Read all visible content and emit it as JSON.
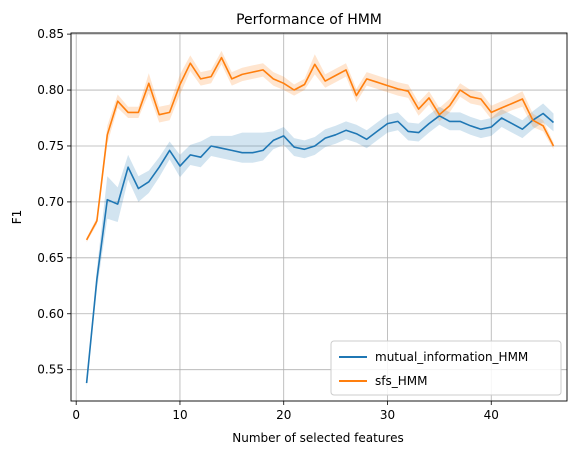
{
  "chart_data": {
    "type": "line",
    "title": "Performance of HMM",
    "xlabel": "Number of selected features",
    "ylabel": "F1",
    "xlim": [
      -0.5,
      47.3
    ],
    "ylim": [
      0.522,
      0.851
    ],
    "xticks": [
      0,
      10,
      20,
      30,
      40
    ],
    "yticks": [
      0.55,
      0.6,
      0.65,
      0.7,
      0.75,
      0.8,
      0.85
    ],
    "ytick_labels": [
      "0.55",
      "0.60",
      "0.65",
      "0.70",
      "0.75",
      "0.80",
      "0.85"
    ],
    "grid": true,
    "legend_position": "lower-right",
    "x": [
      1,
      2,
      3,
      4,
      5,
      6,
      7,
      8,
      9,
      10,
      11,
      12,
      13,
      14,
      15,
      16,
      17,
      18,
      19,
      20,
      21,
      22,
      23,
      24,
      25,
      26,
      27,
      28,
      29,
      30,
      31,
      32,
      33,
      34,
      35,
      36,
      37,
      38,
      39,
      40,
      41,
      42,
      43,
      44,
      45,
      46
    ],
    "series": [
      {
        "name": "mutual_information_HMM",
        "color": "#1f77b4",
        "values": [
          0.538,
          0.631,
          0.702,
          0.698,
          0.731,
          0.712,
          0.718,
          0.731,
          0.746,
          0.732,
          0.742,
          0.74,
          0.75,
          0.748,
          0.746,
          0.744,
          0.744,
          0.746,
          0.755,
          0.759,
          0.749,
          0.747,
          0.75,
          0.757,
          0.76,
          0.764,
          0.761,
          0.756,
          0.763,
          0.77,
          0.772,
          0.763,
          0.762,
          0.77,
          0.777,
          0.772,
          0.772,
          0.768,
          0.765,
          0.767,
          0.775,
          0.77,
          0.765,
          0.773,
          0.779,
          0.771
        ],
        "ci_lower": [
          0.535,
          0.622,
          0.685,
          0.682,
          0.72,
          0.7,
          0.708,
          0.722,
          0.738,
          0.722,
          0.733,
          0.731,
          0.741,
          0.739,
          0.737,
          0.735,
          0.735,
          0.737,
          0.747,
          0.751,
          0.741,
          0.739,
          0.742,
          0.749,
          0.752,
          0.756,
          0.753,
          0.748,
          0.755,
          0.762,
          0.764,
          0.755,
          0.754,
          0.762,
          0.769,
          0.764,
          0.764,
          0.76,
          0.757,
          0.759,
          0.767,
          0.762,
          0.757,
          0.765,
          0.771,
          0.763
        ],
        "ci_upper": [
          0.541,
          0.64,
          0.723,
          0.713,
          0.742,
          0.723,
          0.728,
          0.74,
          0.754,
          0.742,
          0.751,
          0.754,
          0.759,
          0.759,
          0.759,
          0.762,
          0.762,
          0.762,
          0.763,
          0.767,
          0.757,
          0.755,
          0.758,
          0.765,
          0.768,
          0.772,
          0.769,
          0.764,
          0.771,
          0.778,
          0.78,
          0.771,
          0.77,
          0.778,
          0.785,
          0.78,
          0.78,
          0.776,
          0.773,
          0.775,
          0.783,
          0.778,
          0.773,
          0.781,
          0.788,
          0.779
        ]
      },
      {
        "name": "sfs_HMM",
        "color": "#ff7f0e",
        "values": [
          0.666,
          0.683,
          0.76,
          0.79,
          0.78,
          0.78,
          0.806,
          0.778,
          0.78,
          0.805,
          0.824,
          0.81,
          0.812,
          0.829,
          0.81,
          0.814,
          0.816,
          0.818,
          0.81,
          0.806,
          0.8,
          0.805,
          0.823,
          0.808,
          0.813,
          0.818,
          0.795,
          0.81,
          0.807,
          0.804,
          0.801,
          0.799,
          0.783,
          0.793,
          0.778,
          0.786,
          0.8,
          0.794,
          0.792,
          0.78,
          0.784,
          0.788,
          0.792,
          0.773,
          0.768,
          0.75
        ],
        "ci_lower": [
          0.664,
          0.68,
          0.752,
          0.784,
          0.775,
          0.775,
          0.797,
          0.771,
          0.773,
          0.796,
          0.817,
          0.804,
          0.806,
          0.823,
          0.804,
          0.808,
          0.81,
          0.812,
          0.804,
          0.8,
          0.795,
          0.8,
          0.814,
          0.802,
          0.807,
          0.812,
          0.789,
          0.804,
          0.801,
          0.798,
          0.795,
          0.793,
          0.777,
          0.787,
          0.772,
          0.78,
          0.794,
          0.788,
          0.786,
          0.774,
          0.778,
          0.782,
          0.785,
          0.767,
          0.763,
          0.747
        ],
        "ci_upper": [
          0.668,
          0.686,
          0.768,
          0.796,
          0.785,
          0.785,
          0.815,
          0.785,
          0.787,
          0.814,
          0.831,
          0.816,
          0.818,
          0.835,
          0.816,
          0.82,
          0.822,
          0.824,
          0.816,
          0.812,
          0.805,
          0.81,
          0.832,
          0.814,
          0.819,
          0.824,
          0.801,
          0.816,
          0.813,
          0.81,
          0.807,
          0.805,
          0.789,
          0.799,
          0.784,
          0.792,
          0.806,
          0.8,
          0.798,
          0.786,
          0.79,
          0.794,
          0.799,
          0.779,
          0.773,
          0.753
        ]
      }
    ]
  }
}
